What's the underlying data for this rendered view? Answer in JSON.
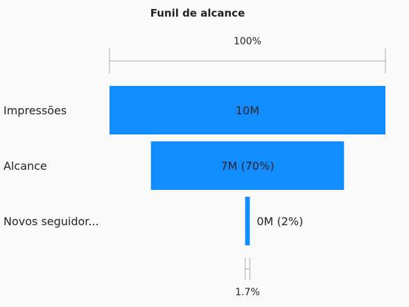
{
  "visual": {
    "title": "Funil de alcance"
  },
  "chart_data": {
    "type": "funnel",
    "title": "Funil de alcance",
    "categories": [
      "Impressões",
      "Alcance",
      "Novos seguidor..."
    ],
    "values": [
      10000000,
      7000000,
      170000
    ],
    "data_labels": [
      "10M",
      "7M (70%)",
      "0M (2%)"
    ],
    "top_percent_label": "100%",
    "bottom_percent_label": "1.7%",
    "bar_color": "#118dff",
    "label_color_inside": "#252423",
    "label_color_outside": "#252423"
  }
}
